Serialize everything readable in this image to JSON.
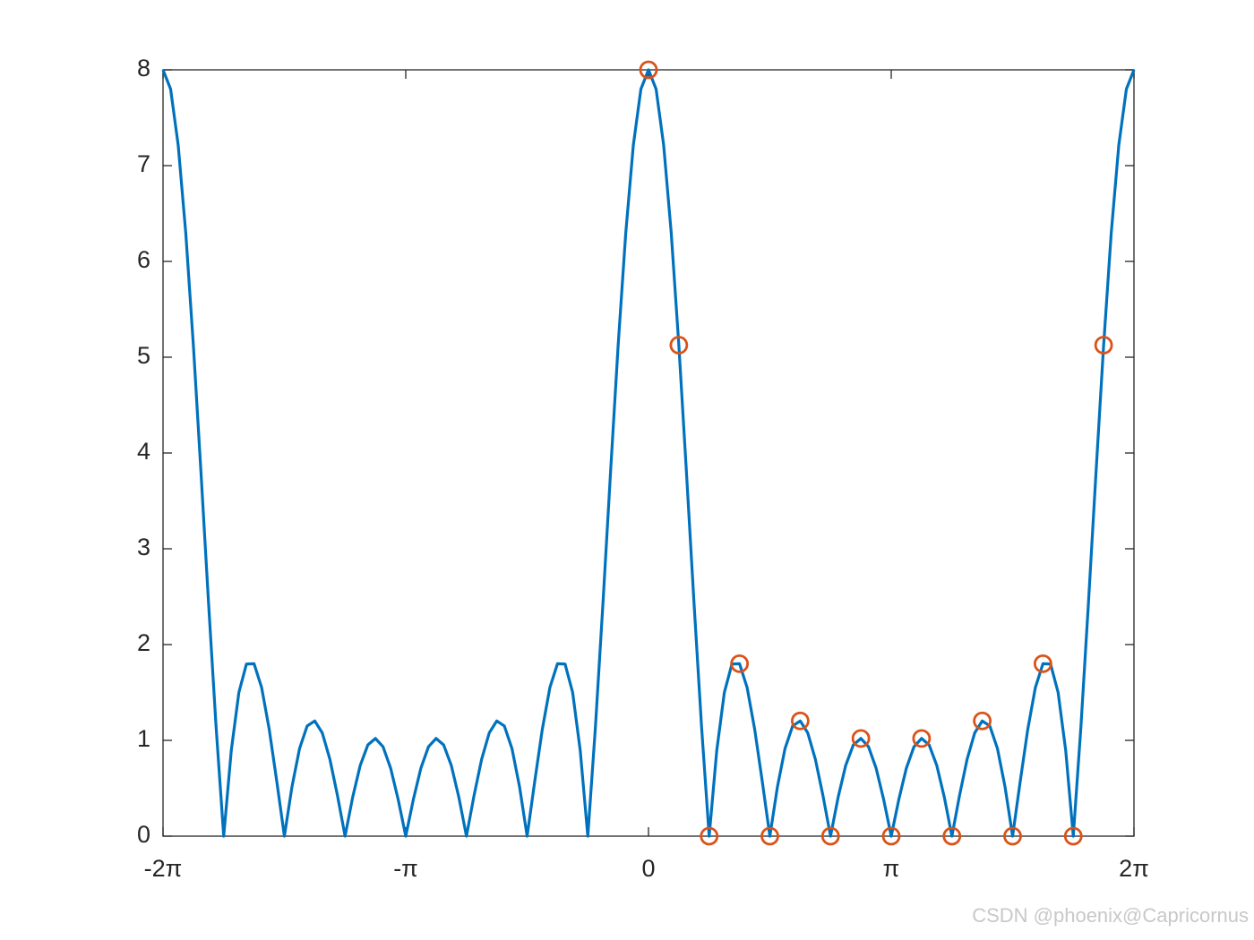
{
  "chart_data": {
    "type": "line",
    "xlim": [
      -6.2832,
      6.2832
    ],
    "xticks": [
      {
        "value": -6.2832,
        "label": "-2π"
      },
      {
        "value": -3.1416,
        "label": "-π"
      },
      0,
      {
        "value": 3.1416,
        "label": "π"
      },
      {
        "value": 6.2832,
        "label": "2π"
      }
    ],
    "ylim": [
      0,
      8
    ],
    "yticks": [
      0,
      1,
      2,
      3,
      4,
      5,
      6,
      7,
      8
    ],
    "series": [
      {
        "type": "line",
        "color": "#0072bd",
        "x": [
          -6.2832,
          -6.185,
          -6.0868,
          -5.9887,
          -5.8905,
          -5.7923,
          -5.6941,
          -5.596,
          -5.4978,
          -5.3996,
          -5.3014,
          -5.2033,
          -5.1051,
          -5.0069,
          -4.9087,
          -4.8106,
          -4.7124,
          -4.6142,
          -4.516,
          -4.4179,
          -4.3197,
          -4.2215,
          -4.1233,
          -4.0252,
          -3.927,
          -3.8288,
          -3.7306,
          -3.6325,
          -3.5343,
          -3.4361,
          -3.3379,
          -3.2398,
          -3.1416,
          -3.0434,
          -2.9452,
          -2.8471,
          -2.7489,
          -2.6507,
          -2.5525,
          -2.4544,
          -2.3562,
          -2.258,
          -2.1598,
          -2.0617,
          -1.9635,
          -1.8653,
          -1.7671,
          -1.669,
          -1.5708,
          -1.4726,
          -1.3744,
          -1.2763,
          -1.1781,
          -1.0799,
          -0.9817,
          -0.8836,
          -0.7854,
          -0.6872,
          -0.589,
          -0.4909,
          -0.3927,
          -0.2945,
          -0.1963,
          -0.0982,
          0,
          0.0982,
          0.1963,
          0.2945,
          0.3927,
          0.4909,
          0.589,
          0.6872,
          0.7854,
          0.8836,
          0.9817,
          1.0799,
          1.1781,
          1.2763,
          1.3744,
          1.4726,
          1.5708,
          1.669,
          1.7671,
          1.8653,
          1.9635,
          2.0617,
          2.1598,
          2.258,
          2.3562,
          2.4544,
          2.5525,
          2.6507,
          2.7489,
          2.8471,
          2.9452,
          3.0434,
          3.1416,
          3.2398,
          3.3379,
          3.4361,
          3.5343,
          3.6325,
          3.7306,
          3.8288,
          3.927,
          4.0252,
          4.1233,
          4.2215,
          4.3197,
          4.4179,
          4.516,
          4.6142,
          4.7124,
          4.8106,
          4.9087,
          5.0069,
          5.1051,
          5.2033,
          5.3014,
          5.3996,
          5.4978,
          5.596,
          5.6941,
          5.7923,
          5.8905,
          5.9887,
          6.0868,
          6.185,
          6.2832
        ],
        "values": [
          8,
          7.799,
          7.214,
          6.296,
          5.126,
          3.802,
          2.436,
          1.136,
          0,
          0.895,
          1.5,
          1.797,
          1.8,
          1.551,
          1.115,
          0.57,
          0,
          0.516,
          0.915,
          1.15,
          1.203,
          1.077,
          0.802,
          0.423,
          0,
          0.406,
          0.739,
          0.952,
          1.02,
          0.934,
          0.711,
          0.383,
          0,
          0.383,
          0.711,
          0.934,
          1.02,
          0.952,
          0.739,
          0.406,
          0,
          0.423,
          0.802,
          1.077,
          1.203,
          1.15,
          0.915,
          0.516,
          0,
          0.57,
          1.115,
          1.551,
          1.8,
          1.797,
          1.5,
          0.895,
          0,
          1.136,
          2.436,
          3.802,
          5.126,
          6.296,
          7.214,
          7.799,
          8,
          7.799,
          7.214,
          6.296,
          5.126,
          3.802,
          2.436,
          1.136,
          0,
          0.895,
          1.5,
          1.797,
          1.8,
          1.551,
          1.115,
          0.57,
          0,
          0.516,
          0.915,
          1.15,
          1.203,
          1.077,
          0.802,
          0.423,
          0,
          0.406,
          0.739,
          0.952,
          1.02,
          0.934,
          0.711,
          0.383,
          0,
          0.383,
          0.711,
          0.934,
          1.02,
          0.952,
          0.739,
          0.406,
          0,
          0.423,
          0.802,
          1.077,
          1.203,
          1.15,
          0.915,
          0.516,
          0,
          0.57,
          1.115,
          1.551,
          1.8,
          1.797,
          1.5,
          0.895,
          0,
          1.136,
          2.436,
          3.802,
          5.126,
          6.296,
          7.214,
          7.799,
          8
        ]
      },
      {
        "type": "scatter",
        "color": "#d95319",
        "x": [
          0,
          0.3927,
          0.7854,
          1.1781,
          1.5708,
          1.9635,
          2.3562,
          2.7489,
          3.1416,
          3.5343,
          3.927,
          4.3197,
          4.7124,
          5.1051,
          5.4978,
          5.8905
        ],
        "values": [
          8,
          5.126,
          0,
          1.8,
          0,
          1.203,
          0,
          1.02,
          0,
          1.02,
          0,
          1.203,
          0,
          1.8,
          0,
          5.126
        ]
      }
    ],
    "watermark": "CSDN @phoenix@Capricornus"
  }
}
